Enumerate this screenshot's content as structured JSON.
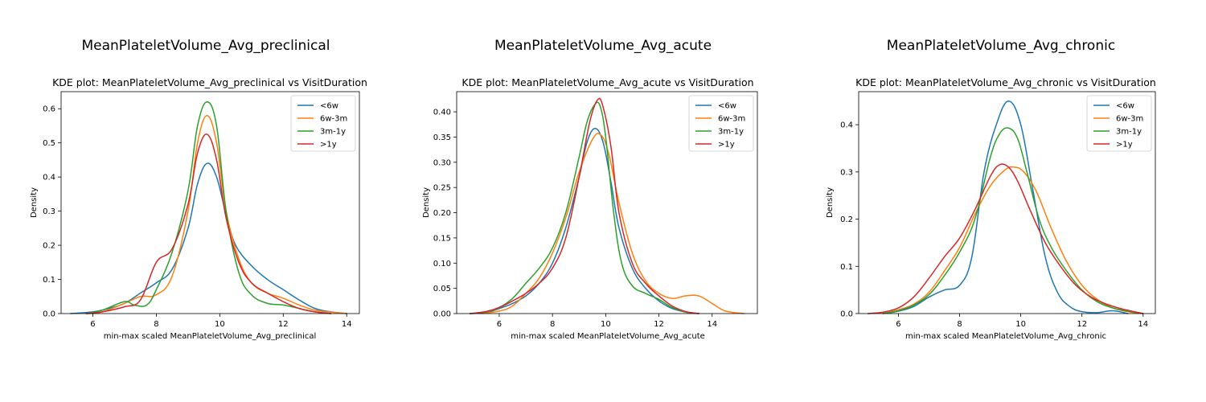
{
  "chart_data": [
    {
      "type": "line",
      "suptitle": "MeanPlateletVolume_Avg_preclinical",
      "title": "KDE plot:  MeanPlateletVolume_Avg_preclinical vs VisitDuration",
      "xlabel": "min-max scaled MeanPlateletVolume_Avg_preclinical",
      "ylabel": "Density",
      "xlim": [
        5,
        14.4
      ],
      "ylim": [
        0,
        0.65
      ],
      "xticks": [
        6,
        8,
        10,
        12,
        14
      ],
      "yticks": [
        0.0,
        0.1,
        0.2,
        0.3,
        0.4,
        0.5,
        0.6
      ],
      "ytick_labels": [
        "0.0",
        "0.1",
        "0.2",
        "0.3",
        "0.4",
        "0.5",
        "0.6"
      ],
      "grid": false,
      "legend": "top-right",
      "series": [
        {
          "name": "<6w",
          "color": "#1f77b4",
          "x": [
            5.3,
            6,
            6.5,
            7,
            7.5,
            8,
            8.5,
            9,
            9.3,
            9.6,
            9.9,
            10.2,
            10.5,
            11,
            11.5,
            12,
            12.5,
            13,
            13.5,
            14
          ],
          "y": [
            0,
            0.005,
            0.015,
            0.03,
            0.06,
            0.09,
            0.13,
            0.25,
            0.38,
            0.44,
            0.4,
            0.29,
            0.2,
            0.14,
            0.1,
            0.07,
            0.04,
            0.015,
            0.005,
            0
          ]
        },
        {
          "name": "6w-3m",
          "color": "#ff7f0e",
          "x": [
            5.8,
            6.3,
            7,
            7.5,
            8,
            8.5,
            9,
            9.3,
            9.6,
            9.9,
            10.2,
            10.6,
            11,
            11.5,
            12,
            12.5,
            13,
            13.5,
            14
          ],
          "y": [
            0,
            0.005,
            0.03,
            0.05,
            0.055,
            0.11,
            0.3,
            0.5,
            0.58,
            0.5,
            0.3,
            0.16,
            0.09,
            0.06,
            0.045,
            0.025,
            0.01,
            0.004,
            0
          ]
        },
        {
          "name": "3m-1y",
          "color": "#2ca02c",
          "x": [
            5.8,
            6.3,
            7,
            7.3,
            7.7,
            8,
            8.5,
            9,
            9.3,
            9.6,
            9.9,
            10.2,
            10.6,
            11,
            11.5,
            12,
            12.5,
            13,
            13.5
          ],
          "y": [
            0,
            0.01,
            0.035,
            0.025,
            0.025,
            0.07,
            0.18,
            0.36,
            0.55,
            0.62,
            0.55,
            0.3,
            0.12,
            0.055,
            0.03,
            0.025,
            0.015,
            0.005,
            0
          ]
        },
        {
          "name": ">1y",
          "color": "#d62728",
          "x": [
            5.8,
            6.3,
            7,
            7.5,
            8,
            8.5,
            9,
            9.3,
            9.6,
            9.9,
            10.2,
            10.6,
            11,
            11.5,
            12,
            12.5,
            13,
            13.5
          ],
          "y": [
            0,
            0.005,
            0.02,
            0.04,
            0.15,
            0.19,
            0.32,
            0.47,
            0.525,
            0.45,
            0.28,
            0.15,
            0.09,
            0.06,
            0.035,
            0.015,
            0.005,
            0
          ]
        }
      ]
    },
    {
      "type": "line",
      "suptitle": "MeanPlateletVolume_Avg_acute",
      "title": "KDE plot:  MeanPlateletVolume_Avg_acute vs VisitDuration",
      "xlabel": "min-max scaled MeanPlateletVolume_Avg_acute",
      "ylabel": "Density",
      "xlim": [
        4.4,
        15.7
      ],
      "ylim": [
        0,
        0.44
      ],
      "xticks": [
        6,
        8,
        10,
        12,
        14
      ],
      "yticks": [
        0.0,
        0.05,
        0.1,
        0.15,
        0.2,
        0.25,
        0.3,
        0.35,
        0.4
      ],
      "ytick_labels": [
        "0.00",
        "0.05",
        "0.10",
        "0.15",
        "0.20",
        "0.25",
        "0.30",
        "0.35",
        "0.40"
      ],
      "grid": false,
      "legend": "top-right",
      "series": [
        {
          "name": "<6w",
          "color": "#1f77b4",
          "x": [
            4.9,
            5.5,
            6,
            6.5,
            7,
            7.5,
            8,
            8.5,
            9,
            9.3,
            9.6,
            9.9,
            10.2,
            10.5,
            11,
            11.5,
            12,
            12.5,
            13,
            13.5
          ],
          "y": [
            0,
            0.002,
            0.01,
            0.02,
            0.035,
            0.06,
            0.1,
            0.17,
            0.27,
            0.34,
            0.367,
            0.34,
            0.26,
            0.17,
            0.09,
            0.05,
            0.025,
            0.01,
            0.003,
            0
          ]
        },
        {
          "name": "6w-3m",
          "color": "#ff7f0e",
          "x": [
            5.3,
            6,
            6.5,
            7,
            7.5,
            8,
            8.5,
            9,
            9.5,
            9.8,
            10.1,
            10.5,
            11,
            11.5,
            12,
            12.5,
            13,
            13.5,
            14,
            14.5,
            15.2
          ],
          "y": [
            0,
            0.005,
            0.015,
            0.04,
            0.07,
            0.12,
            0.19,
            0.28,
            0.345,
            0.355,
            0.32,
            0.22,
            0.12,
            0.065,
            0.04,
            0.03,
            0.035,
            0.035,
            0.02,
            0.005,
            0
          ]
        },
        {
          "name": "3m-1y",
          "color": "#2ca02c",
          "x": [
            4.9,
            5.5,
            6,
            6.5,
            7,
            7.5,
            8,
            8.5,
            9,
            9.3,
            9.6,
            9.8,
            10,
            10.3,
            10.6,
            11,
            11.5,
            12,
            12.5,
            13,
            13.5
          ],
          "y": [
            0,
            0.003,
            0.012,
            0.03,
            0.06,
            0.09,
            0.13,
            0.2,
            0.31,
            0.38,
            0.415,
            0.41,
            0.35,
            0.2,
            0.1,
            0.055,
            0.04,
            0.028,
            0.012,
            0.003,
            0
          ]
        },
        {
          "name": ">1y",
          "color": "#d62728",
          "x": [
            4.9,
            5.5,
            6,
            6.5,
            7,
            7.5,
            8,
            8.5,
            9,
            9.4,
            9.7,
            9.9,
            10.2,
            10.5,
            11,
            11.5,
            12,
            12.5,
            13,
            13.5
          ],
          "y": [
            0,
            0.004,
            0.012,
            0.025,
            0.04,
            0.06,
            0.09,
            0.15,
            0.27,
            0.38,
            0.424,
            0.41,
            0.33,
            0.2,
            0.1,
            0.06,
            0.035,
            0.015,
            0.004,
            0
          ]
        }
      ]
    },
    {
      "type": "line",
      "suptitle": "MeanPlateletVolume_Avg_chronic",
      "title": "KDE plot:  MeanPlateletVolume_Avg_chronic vs VisitDuration",
      "xlabel": "min-max scaled MeanPlateletVolume_Avg_chronic",
      "ylabel": "Density",
      "xlim": [
        4.7,
        14.4
      ],
      "ylim": [
        0,
        0.47
      ],
      "xticks": [
        6,
        8,
        10,
        12,
        14
      ],
      "yticks": [
        0.0,
        0.1,
        0.2,
        0.3,
        0.4
      ],
      "ytick_labels": [
        "0.0",
        "0.1",
        "0.2",
        "0.3",
        "0.4"
      ],
      "grid": false,
      "legend": "top-right",
      "series": [
        {
          "name": "<6w",
          "color": "#1f77b4",
          "x": [
            5.5,
            6,
            6.5,
            7,
            7.5,
            8,
            8.4,
            8.8,
            9.2,
            9.6,
            10,
            10.4,
            10.8,
            11.2,
            11.6,
            12,
            12.5,
            13,
            13.5
          ],
          "y": [
            0,
            0.005,
            0.015,
            0.035,
            0.05,
            0.06,
            0.12,
            0.3,
            0.4,
            0.45,
            0.4,
            0.26,
            0.12,
            0.045,
            0.015,
            0.004,
            0.002,
            0.006,
            0
          ]
        },
        {
          "name": "6w-3m",
          "color": "#ff7f0e",
          "x": [
            5.5,
            6,
            6.5,
            7,
            7.5,
            8,
            8.5,
            9,
            9.5,
            9.8,
            10.1,
            10.5,
            11,
            11.5,
            12,
            12.5,
            13,
            13.5,
            14
          ],
          "y": [
            0,
            0.008,
            0.02,
            0.045,
            0.09,
            0.14,
            0.21,
            0.27,
            0.305,
            0.31,
            0.3,
            0.26,
            0.18,
            0.11,
            0.06,
            0.03,
            0.012,
            0.004,
            0
          ]
        },
        {
          "name": "3m-1y",
          "color": "#2ca02c",
          "x": [
            5.5,
            6,
            6.5,
            7,
            7.5,
            8,
            8.5,
            9,
            9.3,
            9.6,
            9.9,
            10.2,
            10.6,
            11,
            11.5,
            12,
            12.5,
            13,
            13.5,
            14
          ],
          "y": [
            0,
            0.006,
            0.018,
            0.04,
            0.08,
            0.13,
            0.2,
            0.33,
            0.38,
            0.393,
            0.37,
            0.3,
            0.2,
            0.14,
            0.09,
            0.05,
            0.025,
            0.012,
            0.005,
            0
          ]
        },
        {
          "name": ">1y",
          "color": "#d62728",
          "x": [
            5,
            5.5,
            6,
            6.5,
            7,
            7.5,
            8,
            8.5,
            9,
            9.3,
            9.6,
            9.9,
            10.3,
            10.8,
            11.3,
            11.8,
            12.3,
            12.8,
            13.3,
            14
          ],
          "y": [
            0,
            0.003,
            0.012,
            0.035,
            0.075,
            0.12,
            0.16,
            0.22,
            0.29,
            0.315,
            0.31,
            0.28,
            0.22,
            0.15,
            0.1,
            0.06,
            0.035,
            0.02,
            0.01,
            0
          ]
        }
      ]
    }
  ]
}
